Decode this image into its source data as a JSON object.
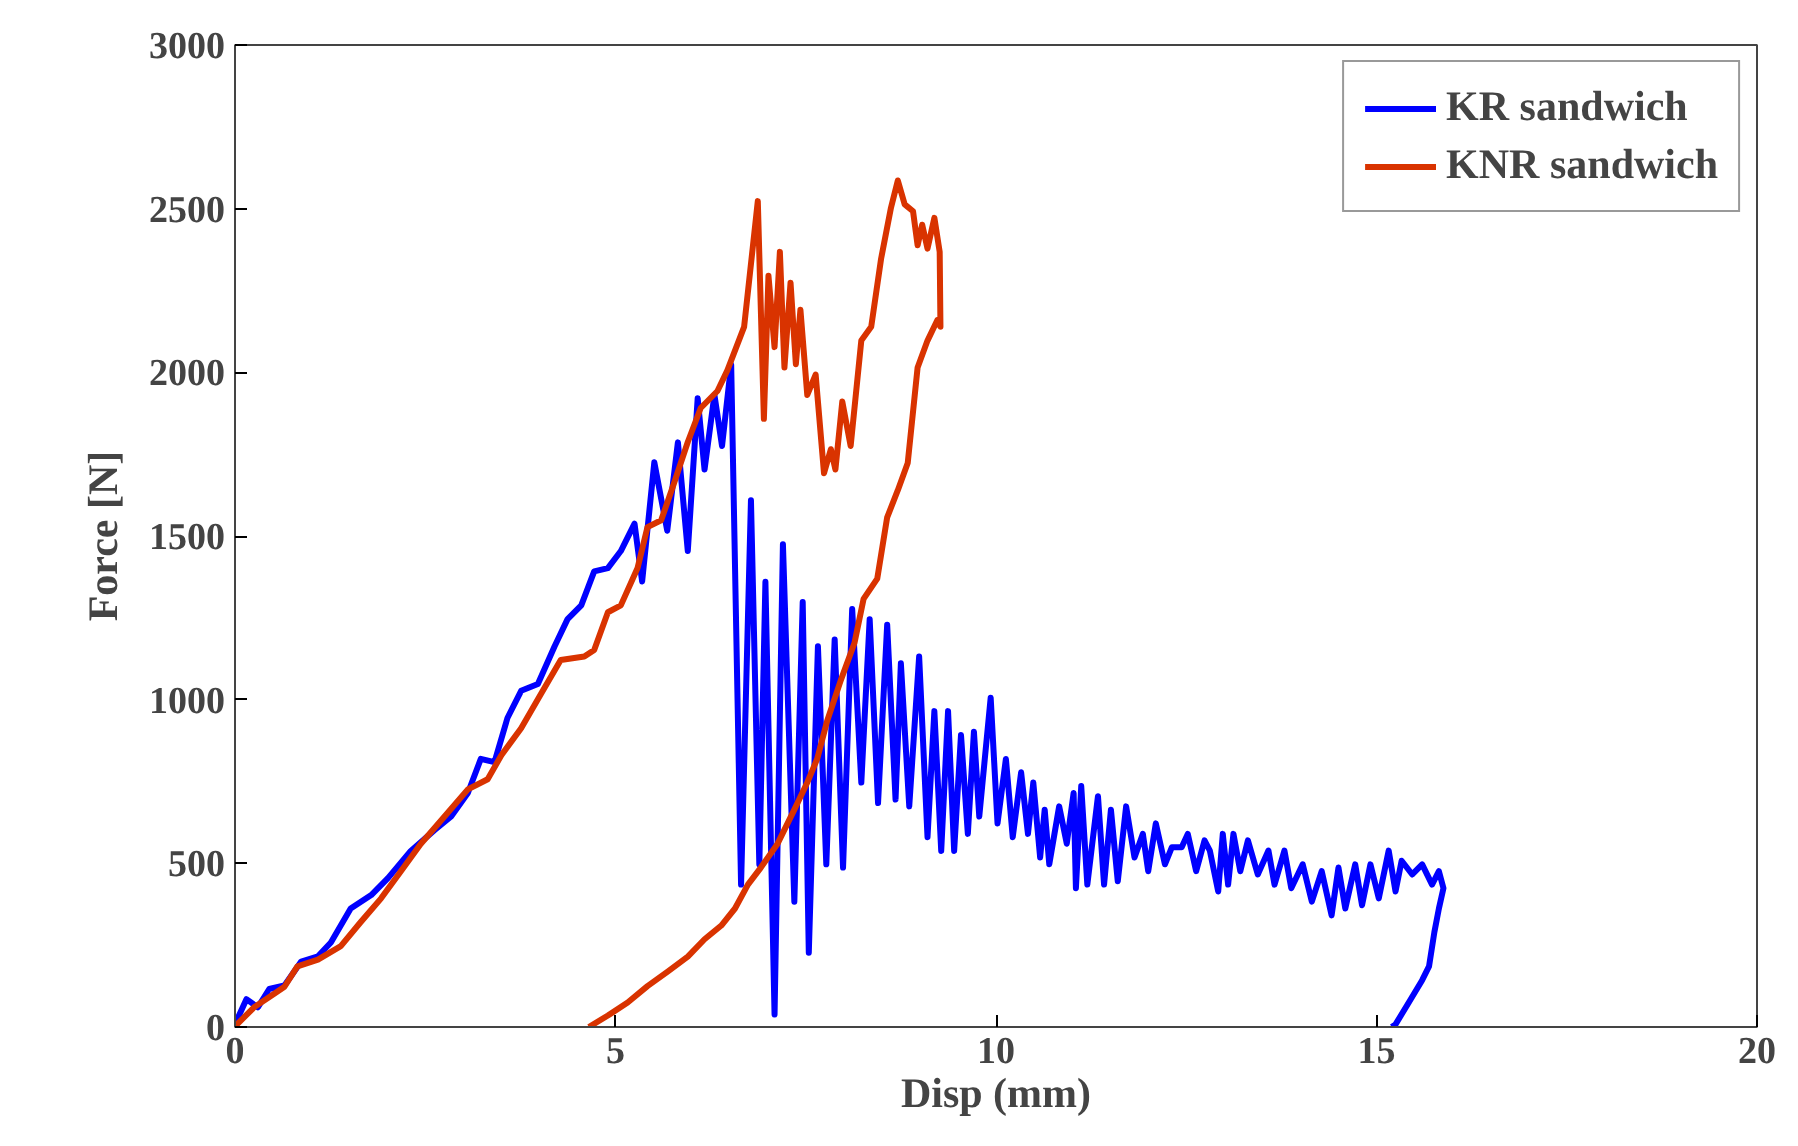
{
  "chart_data": {
    "type": "line",
    "xlabel": "Disp (mm)",
    "ylabel": "Force [N]",
    "xlim": [
      0,
      20
    ],
    "ylim": [
      0,
      3000
    ],
    "xticks": [
      0,
      5,
      10,
      15,
      20
    ],
    "yticks": [
      0,
      500,
      1000,
      1500,
      2000,
      2500,
      3000
    ],
    "grid": false,
    "legend": "top right",
    "marker": "none",
    "line_style": "solid",
    "series": [
      {
        "name": "KR sandwich",
        "color": "#0000ff",
        "x": [
          0.0,
          0.15,
          0.3,
          0.45,
          0.65,
          0.87,
          1.09,
          1.26,
          1.52,
          1.79,
          2.01,
          2.31,
          2.62,
          2.84,
          3.06,
          3.23,
          3.41,
          3.58,
          3.76,
          3.98,
          4.2,
          4.37,
          4.55,
          4.72,
          4.9,
          5.07,
          5.25,
          5.35,
          5.51,
          5.68,
          5.82,
          5.95,
          6.08,
          6.17,
          6.3,
          6.4,
          6.52,
          6.65,
          6.78,
          6.89,
          6.97,
          7.09,
          7.2,
          7.35,
          7.46,
          7.54,
          7.66,
          7.77,
          7.88,
          7.99,
          8.11,
          8.23,
          8.34,
          8.45,
          8.57,
          8.68,
          8.75,
          8.86,
          8.99,
          9.1,
          9.19,
          9.28,
          9.37,
          9.45,
          9.54,
          9.63,
          9.71,
          9.78,
          9.93,
          10.02,
          10.13,
          10.22,
          10.33,
          10.42,
          10.49,
          10.58,
          10.64,
          10.7,
          10.83,
          10.93,
          11.02,
          11.05,
          11.12,
          11.2,
          11.34,
          11.42,
          11.51,
          11.6,
          11.71,
          11.82,
          11.93,
          12.0,
          12.1,
          12.22,
          12.31,
          12.44,
          12.52,
          12.63,
          12.74,
          12.81,
          12.92,
          12.98,
          13.05,
          13.12,
          13.21,
          13.31,
          13.44,
          13.58,
          13.66,
          13.79,
          13.88,
          14.03,
          14.15,
          14.28,
          14.41,
          14.5,
          14.59,
          14.72,
          14.81,
          14.92,
          15.03,
          15.16,
          15.25,
          15.33,
          15.47,
          15.6,
          15.73,
          15.82,
          15.88,
          15.82,
          15.76,
          15.69,
          15.6,
          15.44,
          15.25,
          15.2
        ],
        "values": [
          8,
          85,
          60,
          116,
          127,
          200,
          216,
          258,
          362,
          403,
          455,
          538,
          601,
          643,
          715,
          819,
          809,
          944,
          1027,
          1048,
          1163,
          1246,
          1288,
          1392,
          1402,
          1454,
          1538,
          1361,
          1725,
          1516,
          1786,
          1454,
          1921,
          1703,
          1931,
          1775,
          2024,
          435,
          1609,
          497,
          1360,
          38,
          1475,
          383,
          1298,
          227,
          1163,
          497,
          1184,
          487,
          1277,
          747,
          1246,
          684,
          1229,
          695,
          1111,
          674,
          1132,
          580,
          965,
          538,
          965,
          538,
          892,
          590,
          902,
          643,
          1006,
          622,
          819,
          580,
          778,
          590,
          747,
          518,
          664,
          497,
          674,
          560,
          715,
          424,
          736,
          435,
          705,
          435,
          664,
          445,
          674,
          518,
          590,
          476,
          622,
          497,
          549,
          549,
          590,
          476,
          570,
          539,
          414,
          590,
          435,
          590,
          476,
          570,
          466,
          539,
          435,
          539,
          424,
          497,
          383,
          476,
          341,
          487,
          362,
          497,
          372,
          497,
          393,
          539,
          414,
          508,
          466,
          497,
          435,
          476,
          424,
          362,
          289,
          185,
          143,
          81,
          8,
          0
        ]
      },
      {
        "name": "KNR sandwich",
        "color": "#d93300",
        "x": [
          0.0,
          0.25,
          0.52,
          0.65,
          0.82,
          1.09,
          1.39,
          1.65,
          1.92,
          2.18,
          2.44,
          2.79,
          3.06,
          3.32,
          3.5,
          3.76,
          4.02,
          4.28,
          4.59,
          4.72,
          4.9,
          5.07,
          5.29,
          5.42,
          5.6,
          5.77,
          5.95,
          6.12,
          6.34,
          6.47,
          6.69,
          6.87,
          6.95,
          7.01,
          7.09,
          7.16,
          7.22,
          7.3,
          7.37,
          7.43,
          7.52,
          7.63,
          7.74,
          7.83,
          7.89,
          7.98,
          8.09,
          8.23,
          8.36,
          8.49,
          8.62,
          8.71,
          8.8,
          8.91,
          8.97,
          9.03,
          9.1,
          9.19,
          9.26,
          9.27,
          9.23,
          9.1,
          8.97,
          8.84,
          8.71,
          8.57,
          8.44,
          8.26,
          8.14,
          7.96,
          7.78,
          7.65,
          7.52,
          7.35,
          7.13,
          6.91,
          6.74,
          6.57,
          6.39,
          6.17,
          5.95,
          5.69,
          5.42,
          5.16,
          4.9,
          4.65
        ],
        "values": [
          2,
          60,
          102,
          123,
          185,
          206,
          247,
          320,
          393,
          476,
          559,
          653,
          726,
          757,
          830,
          913,
          1017,
          1121,
          1132,
          1152,
          1267,
          1288,
          1402,
          1527,
          1548,
          1662,
          1787,
          1891,
          1943,
          2006,
          2139,
          2523,
          1858,
          2295,
          2077,
          2368,
          2015,
          2274,
          2025,
          2191,
          1931,
          1993,
          1692,
          1765,
          1703,
          1911,
          1775,
          2097,
          2139,
          2347,
          2503,
          2586,
          2513,
          2492,
          2388,
          2451,
          2378,
          2472,
          2368,
          2139,
          2160,
          2097,
          2015,
          1723,
          1640,
          1557,
          1370,
          1308,
          1173,
          1059,
          934,
          819,
          747,
          664,
          560,
          487,
          435,
          362,
          310,
          268,
          215,
          170,
          125,
          75,
          35,
          0
        ]
      }
    ]
  }
}
